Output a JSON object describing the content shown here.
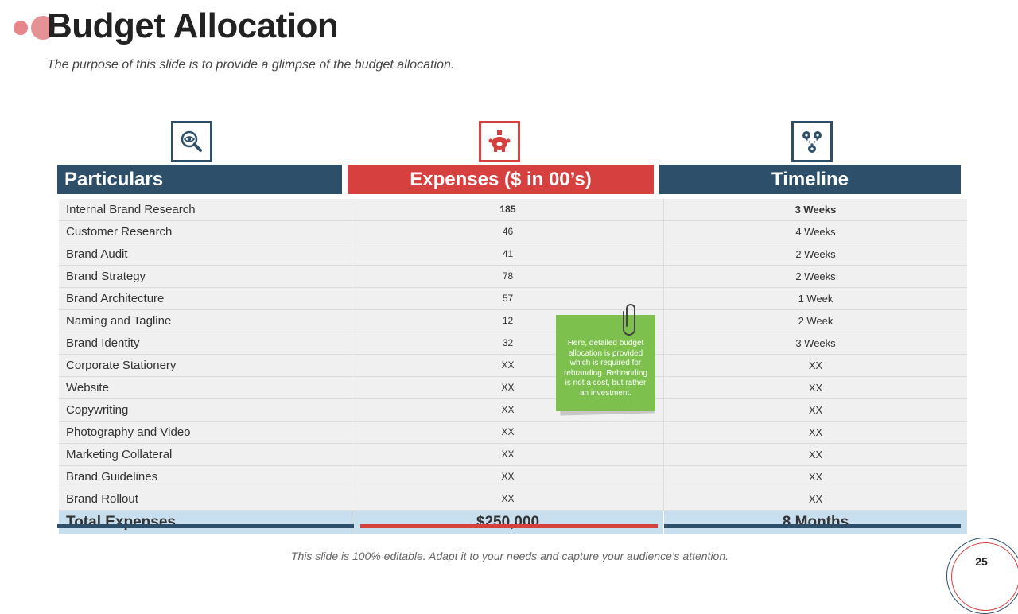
{
  "title": "Budget Allocation",
  "subtitle": "The purpose of this slide is to provide a glimpse of the budget allocation.",
  "icons": {
    "particulars": "magnifier-eye-icon",
    "expenses": "piggy-bank-icon",
    "timeline": "network-nodes-icon"
  },
  "headers": {
    "particulars": "Particulars",
    "expenses": "Expenses ($ in 00’s)",
    "timeline": "Timeline"
  },
  "rows": [
    {
      "particular": "Internal Brand Research",
      "expense": "185",
      "timeline": "3 Weeks"
    },
    {
      "particular": "Customer Research",
      "expense": "46",
      "timeline": "4 Weeks"
    },
    {
      "particular": "Brand Audit",
      "expense": "41",
      "timeline": "2 Weeks"
    },
    {
      "particular": "Brand Strategy",
      "expense": "78",
      "timeline": "2 Weeks"
    },
    {
      "particular": "Brand Architecture",
      "expense": "57",
      "timeline": "1 Week"
    },
    {
      "particular": "Naming and Tagline",
      "expense": "12",
      "timeline": "2 Week"
    },
    {
      "particular": "Brand Identity",
      "expense": "32",
      "timeline": "3 Weeks"
    },
    {
      "particular": "Corporate Stationery",
      "expense": "XX",
      "timeline": "XX"
    },
    {
      "particular": "Website",
      "expense": "XX",
      "timeline": "XX"
    },
    {
      "particular": "Copywriting",
      "expense": "XX",
      "timeline": "XX"
    },
    {
      "particular": "Photography and Video",
      "expense": "XX",
      "timeline": "XX"
    },
    {
      "particular": "Marketing Collateral",
      "expense": "XX",
      "timeline": "XX"
    },
    {
      "particular": "Brand Guidelines",
      "expense": "XX",
      "timeline": "XX"
    },
    {
      "particular": "Brand Rollout",
      "expense": "XX",
      "timeline": "XX"
    }
  ],
  "total": {
    "label": "Total Expenses",
    "expense": "$250,000",
    "timeline": "8 Months"
  },
  "note": {
    "line1": "Here, detailed budget",
    "line2": "allocation is provided",
    "line3": "which is required for",
    "line4": "rebranding. Rebranding",
    "line5": "is not a cost, but rather",
    "line6": "an investment."
  },
  "footer": "This slide is 100% editable.  Adapt it to your needs and capture your audience's attention.",
  "page_number": "25",
  "colors": {
    "navy": "#2d4f6a",
    "red": "#d6403f",
    "note_green": "#7dc04e",
    "total_row": "#c8dfef"
  }
}
